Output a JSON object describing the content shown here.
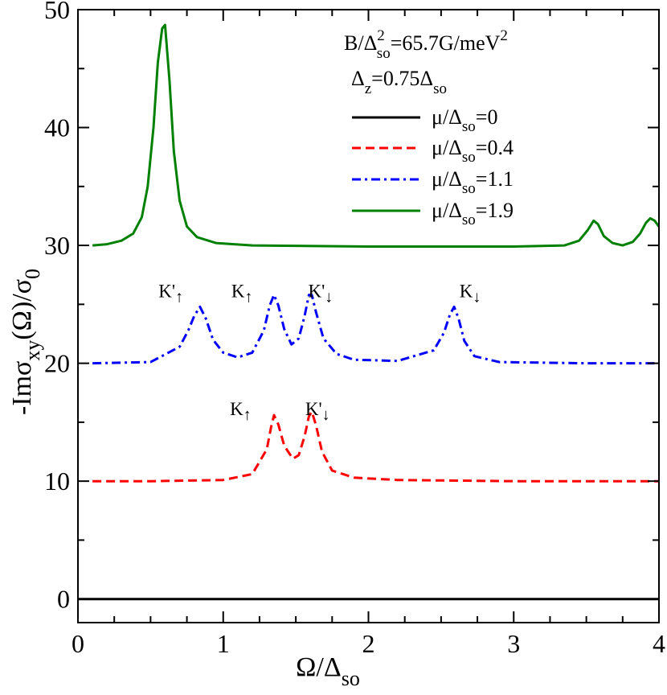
{
  "chart_data": {
    "type": "line",
    "xlabel": {
      "main": "Ω/Δ",
      "sub": "so"
    },
    "ylabel": {
      "main": "-Imσ",
      "sub": "xy",
      "rest": "(Ω)/σ",
      "sub2": "0"
    },
    "xlim": [
      0,
      4
    ],
    "ylim": [
      -2,
      50
    ],
    "xticks": [
      0,
      1,
      2,
      3,
      4
    ],
    "yticks": [
      0,
      10,
      20,
      30,
      40,
      50
    ],
    "xtick_labels": [
      "0",
      "1",
      "2",
      "3",
      "4"
    ],
    "ytick_labels": [
      "0",
      "10",
      "20",
      "30",
      "40",
      "50"
    ],
    "grid": false,
    "legend_position": "top-right",
    "params": [
      {
        "main": "B/Δ",
        "sup": "2",
        "sub": "so",
        "rest": "=65.7G/meV",
        "sup2": "2"
      },
      {
        "main": "Δ",
        "sub": "z",
        "rest": "=0.75Δ",
        "sub2": "so"
      }
    ],
    "series": [
      {
        "name": {
          "main": "μ/Δ",
          "sub": "so",
          "rest": "=0"
        },
        "color": "#000000",
        "dash": "solid",
        "x": [
          0,
          4
        ],
        "y": [
          0,
          0
        ]
      },
      {
        "name": {
          "main": "μ/Δ",
          "sub": "so",
          "rest": "=0.4"
        },
        "color": "#ff0000",
        "dash": "dashed",
        "x": [
          0.1,
          0.5,
          1.0,
          1.2,
          1.3,
          1.33,
          1.35,
          1.38,
          1.42,
          1.48,
          1.52,
          1.56,
          1.59,
          1.61,
          1.64,
          1.68,
          1.75,
          1.9,
          2.2,
          3.0,
          4.0
        ],
        "y": [
          10.0,
          10.0,
          10.1,
          10.6,
          12.7,
          14.6,
          15.6,
          14.8,
          13.0,
          11.9,
          12.2,
          13.8,
          15.5,
          15.9,
          14.7,
          12.5,
          10.9,
          10.3,
          10.1,
          10.0,
          10.0
        ]
      },
      {
        "name": {
          "main": "μ/Δ",
          "sub": "so",
          "rest": "=1.1"
        },
        "color": "#0000ff",
        "dash": "dashdot",
        "x": [
          0.1,
          0.5,
          0.7,
          0.76,
          0.8,
          0.84,
          0.88,
          0.93,
          1.0,
          1.1,
          1.2,
          1.28,
          1.32,
          1.35,
          1.38,
          1.42,
          1.47,
          1.52,
          1.56,
          1.59,
          1.61,
          1.64,
          1.69,
          1.78,
          1.9,
          2.2,
          2.45,
          2.52,
          2.56,
          2.59,
          2.62,
          2.66,
          2.73,
          2.9,
          3.5,
          4.0
        ],
        "y": [
          20.0,
          20.1,
          21.4,
          22.8,
          24.0,
          24.8,
          23.8,
          22.0,
          20.9,
          20.5,
          20.9,
          22.8,
          24.9,
          25.8,
          24.9,
          22.9,
          21.6,
          22.1,
          24.0,
          25.8,
          25.8,
          24.3,
          22.1,
          20.8,
          20.3,
          20.2,
          21.1,
          22.6,
          24.1,
          24.8,
          23.8,
          21.9,
          20.6,
          20.1,
          20.0,
          20.0
        ]
      },
      {
        "name": {
          "main": "μ/Δ",
          "sub": "so",
          "rest": "=1.9"
        },
        "color": "#008000",
        "dash": "solid",
        "x": [
          0.1,
          0.2,
          0.3,
          0.38,
          0.44,
          0.48,
          0.52,
          0.55,
          0.58,
          0.6,
          0.63,
          0.66,
          0.7,
          0.75,
          0.82,
          0.95,
          1.2,
          2.0,
          3.0,
          3.35,
          3.45,
          3.51,
          3.55,
          3.58,
          3.62,
          3.68,
          3.75,
          3.82,
          3.87,
          3.91,
          3.94,
          3.97,
          4.0
        ],
        "y": [
          30.0,
          30.1,
          30.4,
          31.0,
          32.4,
          35.0,
          40.0,
          45.5,
          48.4,
          48.7,
          44.0,
          38.0,
          33.8,
          31.6,
          30.7,
          30.2,
          30.0,
          29.9,
          29.9,
          30.0,
          30.4,
          31.3,
          32.1,
          31.8,
          30.8,
          30.2,
          30.0,
          30.3,
          31.0,
          31.9,
          32.3,
          32.1,
          31.6
        ]
      }
    ],
    "annotations": [
      {
        "base": "K'",
        "sub": "↑",
        "x": 0.64,
        "y": 25.6
      },
      {
        "base": "K",
        "sub": "↑",
        "x": 1.13,
        "y": 25.6
      },
      {
        "base": "K'",
        "sub": "↓",
        "x": 1.67,
        "y": 25.6
      },
      {
        "base": "K",
        "sub": "↓",
        "x": 2.7,
        "y": 25.6
      },
      {
        "base": "K",
        "sub": "↑",
        "x": 1.12,
        "y": 15.6
      },
      {
        "base": "K'",
        "sub": "↓",
        "x": 1.65,
        "y": 15.6
      }
    ]
  }
}
